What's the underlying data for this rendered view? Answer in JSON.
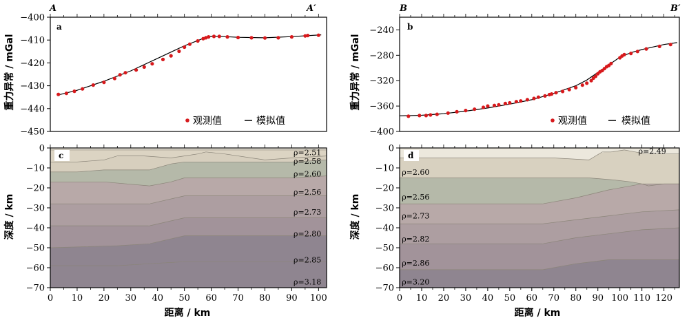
{
  "colors": {
    "observed": "#d7191c",
    "model": "#000000",
    "layers_left": [
      "#ece8dd",
      "#dcd4c3",
      "#d7cfbe",
      "#b5b9a9",
      "#b8a9a8",
      "#ad9ea1",
      "#a2939a",
      "#8f8590"
    ],
    "layers_right": [
      "#ece8dd",
      "#d8d1c0",
      "#b5b9a9",
      "#b8a9a8",
      "#ad9ea1",
      "#a2939a",
      "#8f8590"
    ]
  },
  "labels": {
    "corner_A": "A",
    "corner_A2": "A′",
    "corner_B": "B",
    "corner_B2": "B′",
    "tag_a": "a",
    "tag_b": "b",
    "tag_c": "c",
    "tag_d": "d",
    "ylabel_gravity": "重力异常 / mGal",
    "ylabel_depth": "深度 / km",
    "xlabel": "距离 / km",
    "legend_observed": "观测值",
    "legend_model": "模拟值"
  },
  "chart_data": [
    {
      "id": "a",
      "type": "scatter",
      "xlim": [
        0,
        103
      ],
      "ylim": [
        -450,
        -400
      ],
      "yticks": [
        -400,
        -410,
        -420,
        -430,
        -440,
        -450
      ],
      "legend": "bottom-right",
      "series": [
        {
          "name": "观测值",
          "x": [
            3,
            6,
            9,
            12,
            16,
            20,
            24,
            26,
            28,
            32,
            35,
            38,
            42,
            45,
            48,
            50,
            52,
            55,
            57,
            58,
            59,
            61,
            63,
            66,
            70,
            75,
            80,
            85,
            90,
            95,
            96,
            100
          ],
          "y": [
            -433.8,
            -433.3,
            -432.4,
            -431.4,
            -429.7,
            -428.5,
            -426.8,
            -425.2,
            -424.3,
            -423.1,
            -421.8,
            -420.4,
            -418.5,
            -416.9,
            -414.9,
            -413.1,
            -411.8,
            -410.4,
            -409.4,
            -409.0,
            -408.6,
            -408.4,
            -408.4,
            -408.6,
            -408.9,
            -409.0,
            -409.1,
            -409.0,
            -408.6,
            -408.2,
            -408.0,
            -407.9
          ]
        },
        {
          "name": "模拟值",
          "x": [
            3,
            10,
            20,
            30,
            40,
            50,
            55,
            58,
            60,
            65,
            70,
            80,
            90,
            100,
            101
          ],
          "y": [
            -434.0,
            -432.0,
            -428.0,
            -423.5,
            -418.0,
            -412.5,
            -410.2,
            -408.8,
            -408.3,
            -408.5,
            -408.8,
            -409.0,
            -408.5,
            -407.8,
            -407.7
          ]
        }
      ]
    },
    {
      "id": "b",
      "type": "scatter",
      "xlim": [
        0,
        127
      ],
      "ylim": [
        -400,
        -220
      ],
      "yticks": [
        -240,
        -280,
        -320,
        -360,
        -400
      ],
      "legend": "bottom-right",
      "series": [
        {
          "name": "观测值",
          "x": [
            4,
            9,
            12,
            14,
            17,
            22,
            26,
            30,
            34,
            38,
            40,
            43,
            45,
            48,
            50,
            53,
            55,
            58,
            61,
            63,
            66,
            68,
            69,
            71,
            74,
            77,
            80,
            83,
            85,
            87,
            88,
            89,
            90,
            91,
            92,
            93,
            94,
            95,
            96,
            100,
            101,
            102,
            105,
            108,
            112,
            118,
            123
          ],
          "y": [
            -376,
            -375,
            -375,
            -374,
            -373,
            -371,
            -369,
            -367,
            -365,
            -362,
            -360,
            -359,
            -358,
            -356,
            -355,
            -353,
            -352,
            -350,
            -348,
            -346,
            -344,
            -342,
            -341,
            -339,
            -337,
            -334,
            -331,
            -327,
            -324,
            -320,
            -316,
            -313,
            -309,
            -306,
            -304,
            -301,
            -298,
            -296,
            -293,
            -284,
            -281,
            -279,
            -277,
            -274,
            -270,
            -266,
            -263
          ]
        },
        {
          "name": "模拟值",
          "x": [
            0,
            10,
            20,
            30,
            40,
            50,
            60,
            70,
            80,
            85,
            90,
            95,
            100,
            105,
            110,
            115,
            120,
            126
          ],
          "y": [
            -375.5,
            -374.5,
            -372,
            -368,
            -363,
            -357,
            -350,
            -340,
            -328,
            -319,
            -307,
            -295,
            -283,
            -276,
            -271,
            -267,
            -263,
            -260
          ]
        }
      ]
    },
    {
      "id": "c",
      "type": "area",
      "xlim": [
        0,
        103
      ],
      "ylim": [
        -70,
        0
      ],
      "xticks": [
        0,
        10,
        20,
        30,
        40,
        50,
        60,
        70,
        80,
        90,
        100
      ],
      "yticks": [
        0,
        -10,
        -20,
        -30,
        -40,
        -50,
        -60,
        -70
      ],
      "boundaries": [
        {
          "x": [
            0,
            103
          ],
          "y": [
            -1,
            -1
          ]
        },
        {
          "x": [
            0,
            10,
            20,
            25,
            35,
            45,
            50,
            55,
            58,
            65,
            75,
            80,
            90,
            103
          ],
          "y": [
            -7,
            -7,
            -6,
            -4,
            -4,
            -5,
            -4,
            -3,
            -2,
            -3,
            -5,
            -6,
            -5,
            -4
          ]
        },
        {
          "x": [
            0,
            10,
            20,
            37,
            45,
            50,
            60,
            80,
            90,
            103
          ],
          "y": [
            -12,
            -12,
            -11,
            -11,
            -8,
            -7,
            -7,
            -7,
            -7,
            -6
          ]
        },
        {
          "x": [
            0,
            10,
            20,
            37,
            45,
            50,
            60,
            80,
            90,
            103
          ],
          "y": [
            -17,
            -17,
            -17,
            -19,
            -17,
            -15,
            -15,
            -15,
            -15,
            -14
          ]
        },
        {
          "x": [
            0,
            25,
            37,
            50,
            60,
            80,
            103
          ],
          "y": [
            -28,
            -28,
            -28,
            -24,
            -24,
            -24,
            -24
          ]
        },
        {
          "x": [
            0,
            25,
            37,
            50,
            60,
            80,
            103
          ],
          "y": [
            -39,
            -39,
            -39,
            -35,
            -35,
            -35,
            -35
          ]
        },
        {
          "x": [
            0,
            25,
            37,
            50,
            60,
            80,
            103
          ],
          "y": [
            -50,
            -49,
            -48,
            -44,
            -44,
            -44,
            -44
          ]
        },
        {
          "x": [
            0,
            25,
            37,
            50,
            60,
            80,
            103
          ],
          "y": [
            -59,
            -59,
            -58,
            -57,
            -57,
            -57,
            -57
          ]
        }
      ],
      "layer_labels": [
        {
          "text": "ρ=2.51",
          "x": 101,
          "y": -2.3
        },
        {
          "text": "ρ=2.58",
          "x": 101,
          "y": -6.5
        },
        {
          "text": "ρ=2.60",
          "x": 101,
          "y": -13
        },
        {
          "text": "ρ=2.56",
          "x": 101,
          "y": -22
        },
        {
          "text": "ρ=2.73",
          "x": 101,
          "y": -32
        },
        {
          "text": "ρ=2.80",
          "x": 101,
          "y": -43
        },
        {
          "text": "ρ=2.85",
          "x": 101,
          "y": -56
        },
        {
          "text": "ρ=3.18",
          "x": 101,
          "y": -67
        }
      ]
    },
    {
      "id": "d",
      "type": "area",
      "xlim": [
        0,
        127
      ],
      "ylim": [
        -70,
        0
      ],
      "xticks": [
        0,
        10,
        20,
        30,
        40,
        50,
        60,
        70,
        80,
        90,
        100,
        110,
        120
      ],
      "yticks": [
        0,
        -10,
        -20,
        -30,
        -40,
        -50,
        -60,
        -70
      ],
      "boundaries": [
        {
          "x": [
            0,
            70,
            86,
            92,
            96,
            102,
            107,
            112,
            120,
            127
          ],
          "y": [
            -5,
            -5,
            -6,
            -2,
            -2,
            -1,
            -2,
            -3,
            -3,
            -3
          ]
        },
        {
          "x": [
            0,
            20,
            50,
            70,
            86,
            97,
            105,
            110,
            113,
            120,
            127
          ],
          "y": [
            -15,
            -15,
            -15,
            -15,
            -15,
            -16,
            -17,
            -18,
            -19,
            -18,
            -18
          ]
        },
        {
          "x": [
            0,
            65,
            80,
            95,
            110,
            127
          ],
          "y": [
            -28,
            -28,
            -25,
            -21,
            -18,
            -18
          ]
        },
        {
          "x": [
            0,
            65,
            80,
            95,
            110,
            127
          ],
          "y": [
            -38,
            -38,
            -36,
            -34,
            -32,
            -31
          ]
        },
        {
          "x": [
            0,
            65,
            80,
            95,
            110,
            127
          ],
          "y": [
            -48,
            -48,
            -45,
            -43,
            -41,
            -40
          ]
        },
        {
          "x": [
            0,
            65,
            80,
            95,
            110,
            127
          ],
          "y": [
            -61,
            -61,
            -58,
            -56,
            -56,
            -56
          ]
        }
      ],
      "layer_labels": [
        {
          "text": "ρ=2.49",
          "x": 121,
          "y": -1.5
        },
        {
          "text": "ρ=2.60",
          "x": 1,
          "y": -12
        },
        {
          "text": "ρ=2.56",
          "x": 1,
          "y": -24.5
        },
        {
          "text": "ρ=2.73",
          "x": 1,
          "y": -34
        },
        {
          "text": "ρ=2.82",
          "x": 1,
          "y": -45.5
        },
        {
          "text": "ρ=2.86",
          "x": 1,
          "y": -57.5
        },
        {
          "text": "ρ=3.20",
          "x": 1,
          "y": -67
        }
      ]
    }
  ]
}
